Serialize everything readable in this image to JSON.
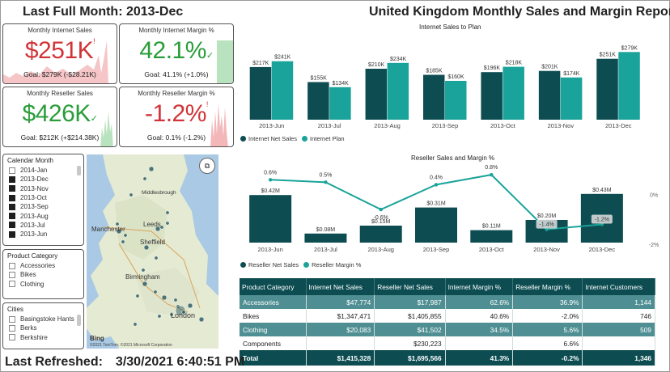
{
  "header": {
    "left_title": "Last Full Month: 2013-Dec",
    "main_title": "United Kingdom Monthly Sales and Margin Report"
  },
  "footer": {
    "refresh_label": "Last Refreshed:",
    "refresh_value": "3/30/2021 6:40:51 PM"
  },
  "cards": [
    {
      "title": "Monthly Internet Sales",
      "value": "$251K",
      "marker": "!",
      "goal": "Goal: $279K (-$28.21K)",
      "status_color": "#d13438"
    },
    {
      "title": "Monthly Internet Margin %",
      "value": "42.1%",
      "marker": "✓",
      "goal": "Goal: 41.1% (+1.0%)",
      "status_color": "#2a9d3a"
    },
    {
      "title": "Monthly Reseller Sales",
      "value": "$426K",
      "marker": "✓",
      "goal": "Goal: $212K (+$214.38K)",
      "status_color": "#2a9d3a"
    },
    {
      "title": "Monthly Reseller Margin %",
      "value": "-1.2%",
      "marker": "!",
      "goal": "Goal: 0.1% (-1.2%)",
      "status_color": "#d13438"
    }
  ],
  "slicers": {
    "calendar_month": {
      "header": "Calendar Month",
      "items": [
        {
          "label": "2014-Jan",
          "checked": false
        },
        {
          "label": "2013-Dec",
          "checked": true
        },
        {
          "label": "2013-Nov",
          "checked": true
        },
        {
          "label": "2013-Oct",
          "checked": true
        },
        {
          "label": "2013-Sep",
          "checked": true
        },
        {
          "label": "2013-Aug",
          "checked": true
        },
        {
          "label": "2013-Jul",
          "checked": true
        },
        {
          "label": "2013-Jun",
          "checked": true
        }
      ]
    },
    "product_category": {
      "header": "Product Category",
      "items": [
        {
          "label": "Accessories",
          "checked": false
        },
        {
          "label": "Bikes",
          "checked": false
        },
        {
          "label": "Clothing",
          "checked": false
        }
      ]
    },
    "cities": {
      "header": "Cities",
      "items": [
        {
          "label": "Basingstoke Hants",
          "checked": false
        },
        {
          "label": "Berks",
          "checked": false
        },
        {
          "label": "Berkshire",
          "checked": false
        }
      ]
    }
  },
  "map": {
    "labels": [
      "Manchester",
      "Leeds",
      "Sheffield",
      "Birmingham",
      "London",
      "Middlesbrough"
    ],
    "bing": "Bing",
    "copyright": "©2021 TomTom, ©2021 Microsoft Corporation"
  },
  "colors": {
    "dark_teal": "#0d4d52",
    "teal": "#1aa39a",
    "row_teal": "#4f8f93"
  },
  "chart_data": [
    {
      "type": "bar",
      "title": "Internet Sales to Plan",
      "categories": [
        "2013-Jun",
        "2013-Jul",
        "2013-Aug",
        "2013-Sep",
        "2013-Oct",
        "2013-Nov",
        "2013-Dec"
      ],
      "series": [
        {
          "name": "Internet Net Sales",
          "values": [
            217,
            155,
            210,
            185,
            196,
            201,
            251
          ],
          "labels": [
            "$217K",
            "$155K",
            "$210K",
            "$185K",
            "$196K",
            "$201K",
            "$251K"
          ],
          "color": "#0d4d52"
        },
        {
          "name": "Internet Plan",
          "values": [
            241,
            134,
            234,
            160,
            218,
            174,
            279
          ],
          "labels": [
            "$241K",
            "$134K",
            "$234K",
            "$160K",
            "$218K",
            "$174K",
            "$279K"
          ],
          "color": "#1aa39a"
        }
      ],
      "ylim": [
        0,
        300
      ],
      "legend": "bottom-left"
    },
    {
      "type": "bar",
      "title": "Reseller Sales and Margin %",
      "categories": [
        "2013-Jun",
        "2013-Jul",
        "2013-Aug",
        "2013-Sep",
        "2013-Oct",
        "2013-Nov",
        "2013-Dec"
      ],
      "series": [
        {
          "name": "Reseller Net Sales",
          "values": [
            0.42,
            0.08,
            0.15,
            0.31,
            0.11,
            0.2,
            0.43
          ],
          "labels": [
            "$0.42M",
            "$0.08M",
            "$0.15M",
            "$0.31M",
            "$0.11M",
            "$0.20M",
            "$0.43M"
          ],
          "color": "#0d4d52"
        },
        {
          "name": "Reseller Margin %",
          "type": "line",
          "values": [
            0.6,
            0.5,
            -0.6,
            0.4,
            0.8,
            -1.4,
            -1.2
          ],
          "labels": [
            "0.6%",
            "0.5%",
            "-0.6%",
            "0.4%",
            "0.8%",
            "-1.4%",
            "-1.2%"
          ],
          "color": "#1aa39a"
        }
      ],
      "secondary_axis_ticks": [
        "0%",
        "-2%"
      ],
      "secondary_ylim": [
        -2,
        1
      ],
      "ylim": [
        0,
        0.5
      ],
      "legend": "bottom-left"
    },
    {
      "type": "table",
      "columns": [
        "Product Category",
        "Internet Net Sales",
        "Reseller Net Sales",
        "Internet Margin %",
        "Reseller Margin %",
        "Internet Customers"
      ],
      "rows": [
        [
          "Accessories",
          "$47,774",
          "$17,987",
          "62.6%",
          "36.9%",
          "1,144"
        ],
        [
          "Bikes",
          "$1,347,471",
          "$1,405,855",
          "40.6%",
          "-2.0%",
          "746"
        ],
        [
          "Clothing",
          "$20,083",
          "$41,502",
          "34.5%",
          "5.6%",
          "509"
        ],
        [
          "Components",
          "",
          "$230,223",
          "",
          "6.6%",
          ""
        ]
      ],
      "total": [
        "Total",
        "$1,415,328",
        "$1,695,566",
        "41.3%",
        "-0.2%",
        "1,346"
      ]
    }
  ]
}
